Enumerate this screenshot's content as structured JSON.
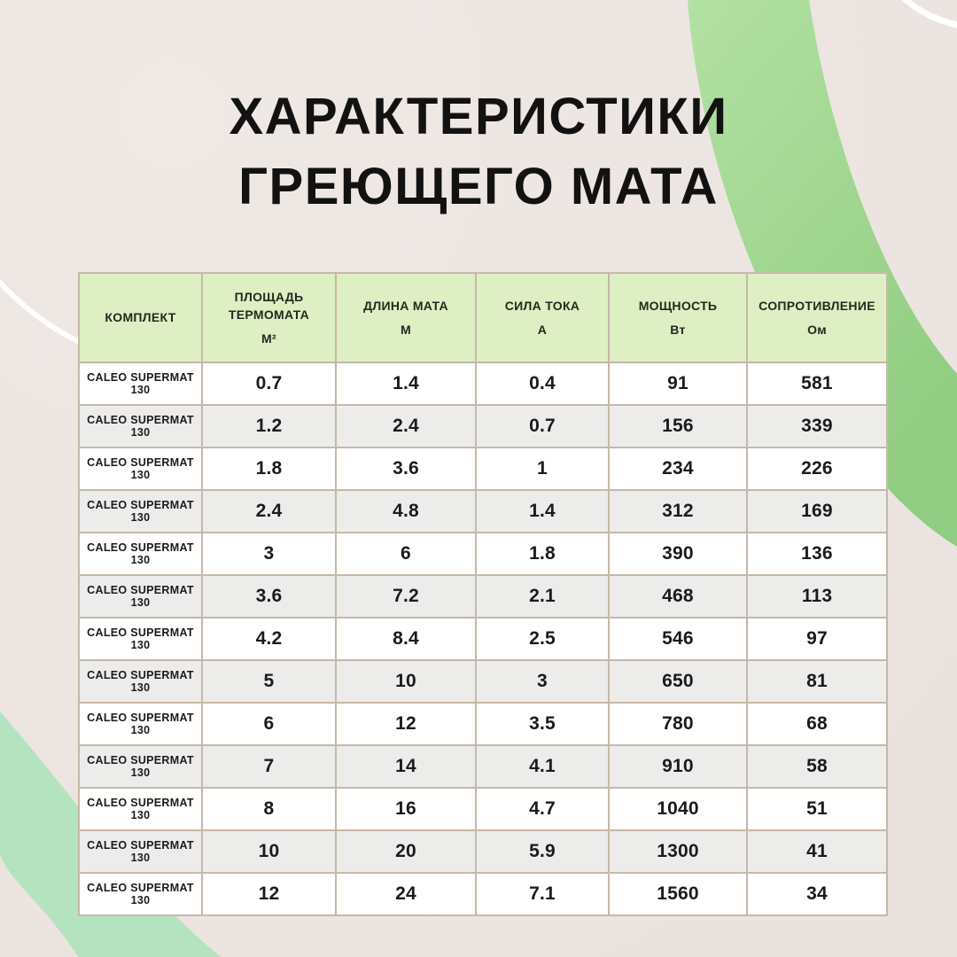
{
  "page": {
    "title_line1": "ХАРАКТЕРИСТИКИ",
    "title_line2": "ГРЕЮЩЕГО МАТА"
  },
  "colors": {
    "background": "#ece5e1",
    "header_bg": "#ddefc3",
    "row_bg": "#ffffff",
    "row_alt_bg": "#ececeb",
    "grid_border": "#c6b8a9",
    "accent_green_band_light": "#b3e1a3",
    "accent_green_band_dark": "#90cc81",
    "accent_mint_band": "#b5e2bf",
    "arc_white": "#ffffff",
    "title_color": "#121212"
  },
  "decor": {
    "green_arc_band": "green-arc-band",
    "mint_arc_band": "mint-arc-band",
    "white_arc_left": "white-arc-left",
    "white_arc_top_right": "white-arc-top-right"
  },
  "table": {
    "headers": [
      {
        "label": "КОМПЛЕКТ",
        "unit": ""
      },
      {
        "label": "ПЛОЩАДЬ ТЕРМОМАТА",
        "unit": "М²"
      },
      {
        "label": "ДЛИНА МАТА",
        "unit": "М"
      },
      {
        "label": "СИЛА ТОКА",
        "unit": "А"
      },
      {
        "label": "МОЩНОСТЬ",
        "unit": "Вт"
      },
      {
        "label": "СОПРОТИВЛЕНИЕ",
        "unit": "Ом"
      }
    ],
    "rows": [
      {
        "kit": "CALEO SUPERMAT 130",
        "area_m2": "0.7",
        "length_m": "1.4",
        "current_a": "0.4",
        "power_w": "91",
        "resistance_ohm": "581"
      },
      {
        "kit": "CALEO SUPERMAT 130",
        "area_m2": "1.2",
        "length_m": "2.4",
        "current_a": "0.7",
        "power_w": "156",
        "resistance_ohm": "339"
      },
      {
        "kit": "CALEO SUPERMAT 130",
        "area_m2": "1.8",
        "length_m": "3.6",
        "current_a": "1",
        "power_w": "234",
        "resistance_ohm": "226"
      },
      {
        "kit": "CALEO SUPERMAT 130",
        "area_m2": "2.4",
        "length_m": "4.8",
        "current_a": "1.4",
        "power_w": "312",
        "resistance_ohm": "169"
      },
      {
        "kit": "CALEO SUPERMAT 130",
        "area_m2": "3",
        "length_m": "6",
        "current_a": "1.8",
        "power_w": "390",
        "resistance_ohm": "136"
      },
      {
        "kit": "CALEO SUPERMAT 130",
        "area_m2": "3.6",
        "length_m": "7.2",
        "current_a": "2.1",
        "power_w": "468",
        "resistance_ohm": "113"
      },
      {
        "kit": "CALEO SUPERMAT 130",
        "area_m2": "4.2",
        "length_m": "8.4",
        "current_a": "2.5",
        "power_w": "546",
        "resistance_ohm": "97"
      },
      {
        "kit": "CALEO SUPERMAT 130",
        "area_m2": "5",
        "length_m": "10",
        "current_a": "3",
        "power_w": "650",
        "resistance_ohm": "81"
      },
      {
        "kit": "CALEO SUPERMAT 130",
        "area_m2": "6",
        "length_m": "12",
        "current_a": "3.5",
        "power_w": "780",
        "resistance_ohm": "68"
      },
      {
        "kit": "CALEO SUPERMAT 130",
        "area_m2": "7",
        "length_m": "14",
        "current_a": "4.1",
        "power_w": "910",
        "resistance_ohm": "58"
      },
      {
        "kit": "CALEO SUPERMAT 130",
        "area_m2": "8",
        "length_m": "16",
        "current_a": "4.7",
        "power_w": "1040",
        "resistance_ohm": "51"
      },
      {
        "kit": "CALEO SUPERMAT 130",
        "area_m2": "10",
        "length_m": "20",
        "current_a": "5.9",
        "power_w": "1300",
        "resistance_ohm": "41"
      },
      {
        "kit": "CALEO SUPERMAT 130",
        "area_m2": "12",
        "length_m": "24",
        "current_a": "7.1",
        "power_w": "1560",
        "resistance_ohm": "34"
      }
    ]
  }
}
